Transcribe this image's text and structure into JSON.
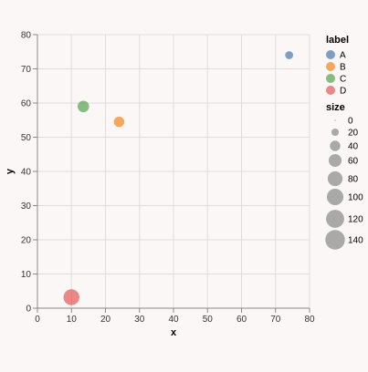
{
  "chart_data": {
    "type": "scatter",
    "title": "",
    "xlabel": "x",
    "ylabel": "y",
    "xlim": [
      0,
      80
    ],
    "ylim": [
      0,
      80
    ],
    "x_ticks": [
      0,
      10,
      20,
      30,
      40,
      50,
      60,
      70,
      80
    ],
    "y_ticks": [
      0,
      10,
      20,
      30,
      40,
      50,
      60,
      70,
      80
    ],
    "grid": true,
    "points": [
      {
        "label": "A",
        "x": 74,
        "y": 74,
        "size": 23
      },
      {
        "label": "B",
        "x": 24,
        "y": 54.5,
        "size": 40
      },
      {
        "label": "C",
        "x": 13.5,
        "y": 59,
        "size": 48
      },
      {
        "label": "D",
        "x": 10,
        "y": 3.2,
        "size": 92
      }
    ],
    "legend_color": {
      "title": "label",
      "position": "top-right",
      "items": [
        {
          "label": "A",
          "color": "#4c78a8"
        },
        {
          "label": "B",
          "color": "#f58518"
        },
        {
          "label": "C",
          "color": "#54a24b"
        },
        {
          "label": "D",
          "color": "#e45756"
        }
      ]
    },
    "legend_size": {
      "title": "size",
      "items": [
        {
          "label": "0",
          "value": 0
        },
        {
          "label": "20",
          "value": 20
        },
        {
          "label": "40",
          "value": 40
        },
        {
          "label": "60",
          "value": 60
        },
        {
          "label": "80",
          "value": 80
        },
        {
          "label": "100",
          "value": 100
        },
        {
          "label": "120",
          "value": 120
        },
        {
          "label": "140",
          "value": 140
        }
      ]
    },
    "point_opacity": 0.7,
    "size_legend_color": "#888888",
    "grid_color": "#dddddd",
    "axis_color": "#888888"
  }
}
